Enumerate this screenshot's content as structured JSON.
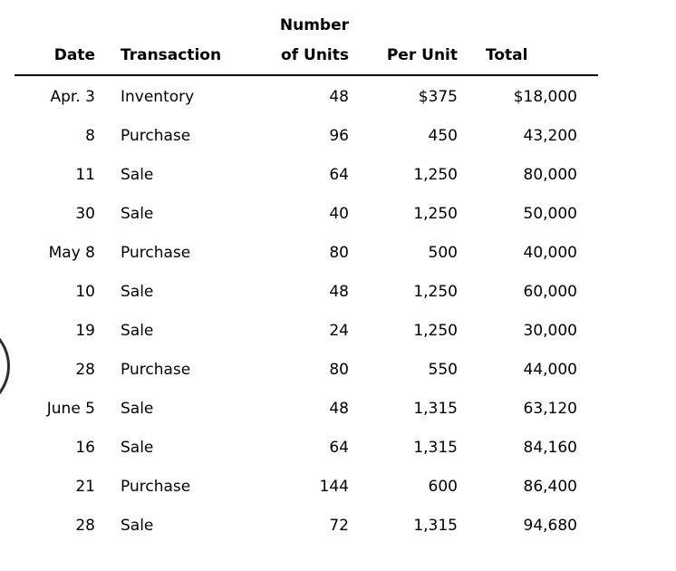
{
  "colors": {
    "background": "#ffffff",
    "text": "#000000",
    "header_rule": "#000000",
    "arc_stroke": "#2e2e2e"
  },
  "table": {
    "headers": {
      "date": "Date",
      "transaction": "Transaction",
      "units": "Number\nof Units",
      "per_unit": "Per Unit",
      "total": "Total"
    },
    "rows": [
      {
        "date": "Apr. 3",
        "transaction": "Inventory",
        "units": "48",
        "per_unit": "$375",
        "total": "$18,000"
      },
      {
        "date": "8",
        "transaction": "Purchase",
        "units": "96",
        "per_unit": "450",
        "total": "43,200"
      },
      {
        "date": "11",
        "transaction": "Sale",
        "units": "64",
        "per_unit": "1,250",
        "total": "80,000"
      },
      {
        "date": "30",
        "transaction": "Sale",
        "units": "40",
        "per_unit": "1,250",
        "total": "50,000"
      },
      {
        "date": "May 8",
        "transaction": "Purchase",
        "units": "80",
        "per_unit": "500",
        "total": "40,000"
      },
      {
        "date": "10",
        "transaction": "Sale",
        "units": "48",
        "per_unit": "1,250",
        "total": "60,000"
      },
      {
        "date": "19",
        "transaction": "Sale",
        "units": "24",
        "per_unit": "1,250",
        "total": "30,000"
      },
      {
        "date": "28",
        "transaction": "Purchase",
        "units": "80",
        "per_unit": "550",
        "total": "44,000"
      },
      {
        "date": "June 5",
        "transaction": "Sale",
        "units": "48",
        "per_unit": "1,315",
        "total": "63,120"
      },
      {
        "date": "16",
        "transaction": "Sale",
        "units": "64",
        "per_unit": "1,315",
        "total": "84,160"
      },
      {
        "date": "21",
        "transaction": "Purchase",
        "units": "144",
        "per_unit": "600",
        "total": "86,400"
      },
      {
        "date": "28",
        "transaction": "Sale",
        "units": "72",
        "per_unit": "1,315",
        "total": "94,680"
      }
    ]
  }
}
